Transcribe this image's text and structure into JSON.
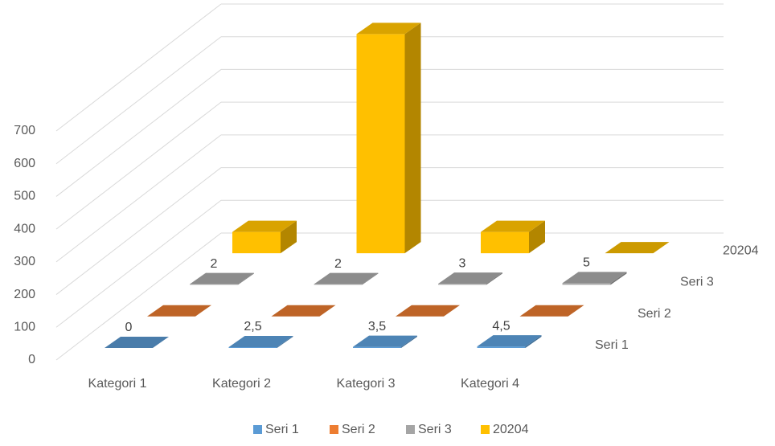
{
  "chart_data": {
    "type": "bar3d",
    "categories": [
      "Kategori 1",
      "Kategori 2",
      "Kategori 3",
      "Kategori 4"
    ],
    "series": [
      {
        "name": "Seri 1",
        "color": "#5b9bd5",
        "values": [
          0,
          2.5,
          3.5,
          4.5
        ],
        "value_labels": [
          "0",
          "2,5",
          "3,5",
          "4,5"
        ]
      },
      {
        "name": "Seri 2",
        "color": "#ed7d31",
        "values": [
          0,
          0,
          0,
          0
        ]
      },
      {
        "name": "Seri 3",
        "color": "#a5a5a5",
        "values": [
          2,
          2,
          3,
          5
        ]
      },
      {
        "name": "20204",
        "color": "#ffc000",
        "values": [
          65,
          670,
          65,
          0
        ]
      }
    ],
    "ylim": [
      0,
      700
    ],
    "yticks": [
      0,
      100,
      200,
      300,
      400,
      500,
      600,
      700
    ],
    "grid": true,
    "legend": "bottom"
  }
}
